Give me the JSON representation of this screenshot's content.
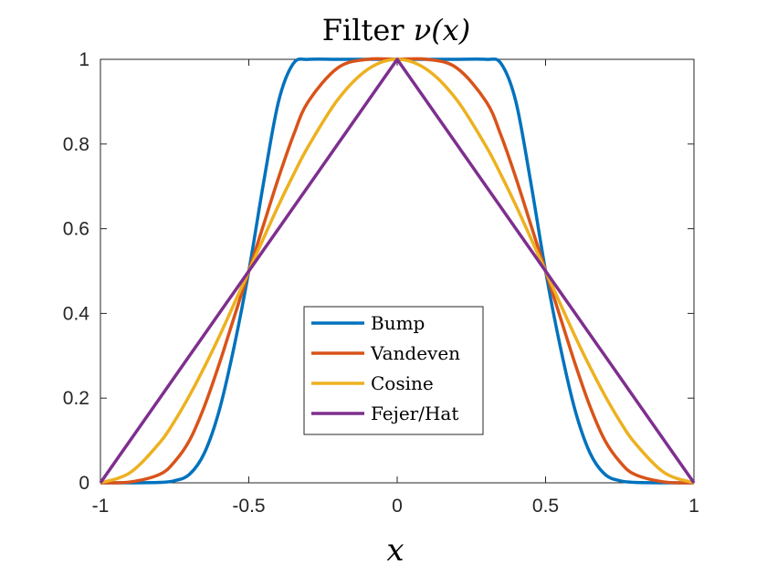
{
  "chart_data": {
    "type": "line",
    "title_prefix": "Filter ",
    "title_var": "ν(x)",
    "xlabel": "x",
    "ylabel": "",
    "xlim": [
      -1,
      1
    ],
    "ylim": [
      0,
      1
    ],
    "xticks": [
      -1,
      -0.5,
      0,
      0.5,
      1
    ],
    "xtick_labels": [
      "-1",
      "-0.5",
      "0",
      "0.5",
      "1"
    ],
    "yticks": [
      0,
      0.2,
      0.4,
      0.6,
      0.8,
      1
    ],
    "ytick_labels": [
      "0",
      "0.2",
      "0.4",
      "0.6",
      "0.8",
      "1"
    ],
    "legend_position": "center-bottom",
    "x": [
      -1,
      -0.9,
      -0.8,
      -0.75,
      -0.7,
      -0.65,
      -0.6,
      -0.55,
      -0.5,
      -0.45,
      -0.4,
      -0.35,
      -0.3,
      -0.2,
      -0.1,
      0,
      0.1,
      0.2,
      0.3,
      0.35,
      0.4,
      0.45,
      0.5,
      0.55,
      0.6,
      0.65,
      0.7,
      0.75,
      0.8,
      0.9,
      1
    ],
    "series": [
      {
        "name": "Bump",
        "color": "#0072BD",
        "values": [
          0,
          0.0,
          0.001,
          0.005,
          0.02,
          0.07,
          0.17,
          0.32,
          0.5,
          0.71,
          0.9,
          0.99,
          1.0,
          1.0,
          1.0,
          1.0,
          1.0,
          1.0,
          1.0,
          0.99,
          0.9,
          0.71,
          0.5,
          0.32,
          0.17,
          0.07,
          0.02,
          0.005,
          0.001,
          0.0,
          0
        ]
      },
      {
        "name": "Vandeven",
        "color": "#D95319",
        "values": [
          0,
          0.002,
          0.02,
          0.05,
          0.1,
          0.18,
          0.28,
          0.39,
          0.5,
          0.61,
          0.72,
          0.82,
          0.9,
          0.98,
          1.0,
          1.0,
          1.0,
          0.98,
          0.9,
          0.82,
          0.72,
          0.61,
          0.5,
          0.39,
          0.28,
          0.18,
          0.1,
          0.05,
          0.02,
          0.002,
          0
        ]
      },
      {
        "name": "Cosine",
        "color": "#EDB120",
        "values": [
          0,
          0.024,
          0.095,
          0.146,
          0.206,
          0.273,
          0.345,
          0.422,
          0.5,
          0.578,
          0.655,
          0.727,
          0.794,
          0.905,
          0.976,
          1.0,
          0.976,
          0.905,
          0.794,
          0.727,
          0.655,
          0.578,
          0.5,
          0.422,
          0.345,
          0.273,
          0.206,
          0.146,
          0.095,
          0.024,
          0
        ]
      },
      {
        "name": "Fejer/Hat",
        "color": "#7E2F8E",
        "values": [
          0,
          0.1,
          0.2,
          0.25,
          0.3,
          0.35,
          0.4,
          0.45,
          0.5,
          0.55,
          0.6,
          0.65,
          0.7,
          0.8,
          0.9,
          1.0,
          0.9,
          0.8,
          0.7,
          0.65,
          0.6,
          0.55,
          0.5,
          0.45,
          0.4,
          0.35,
          0.3,
          0.25,
          0.2,
          0.1,
          0
        ]
      }
    ]
  }
}
